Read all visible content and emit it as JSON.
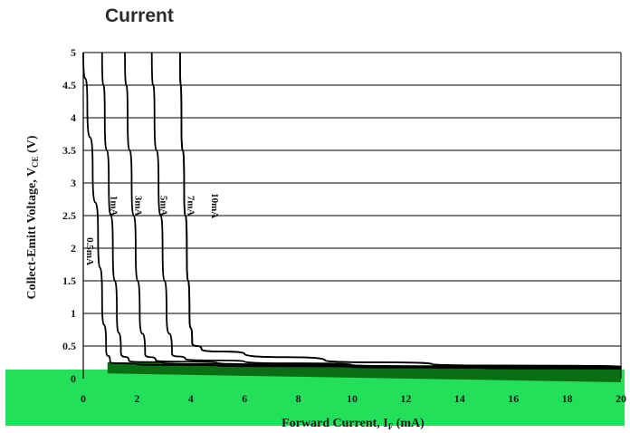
{
  "page": {
    "title": "Current"
  },
  "chart_data": {
    "type": "line",
    "title": "Current",
    "xlabel": "Forward Current, I",
    "xlabel_sub": "F",
    "xlabel_unit": " (mA)",
    "ylabel": "Collect-Emitt Voltage, V",
    "ylabel_sub": "CE",
    "ylabel_unit": " (V)",
    "xlim": [
      0,
      20
    ],
    "ylim": [
      0,
      5
    ],
    "xticks": [
      "0",
      "2",
      "4",
      "6",
      "8",
      "10",
      "12",
      "14",
      "16",
      "18",
      "20"
    ],
    "yticks": [
      "0",
      "0.5",
      "1",
      "1.5",
      "2",
      "2.5",
      "3",
      "3.5",
      "4",
      "4.5",
      "5"
    ],
    "grid": "horizontal",
    "colors": {
      "line": "#000000",
      "band": "#22e05a",
      "band_dark": "#0c6e14"
    },
    "series": [
      {
        "name": "0.5mA",
        "x": [
          0.0,
          0.15,
          0.35,
          0.55,
          0.7,
          0.85,
          1.0,
          2.0,
          5.0,
          10.0,
          15.0,
          20.0
        ],
        "y": [
          5.0,
          4.2,
          3.2,
          2.2,
          1.2,
          0.45,
          0.25,
          0.22,
          0.2,
          0.18,
          0.16,
          0.15
        ]
      },
      {
        "name": "1mA",
        "x": [
          0.7,
          0.8,
          0.95,
          1.1,
          1.25,
          1.4,
          1.7,
          3.0,
          6.0,
          12.0,
          20.0
        ],
        "y": [
          5.0,
          4.0,
          3.0,
          2.0,
          1.0,
          0.4,
          0.27,
          0.24,
          0.21,
          0.18,
          0.15
        ]
      },
      {
        "name": "3mA",
        "x": [
          1.55,
          1.65,
          1.8,
          1.95,
          2.1,
          2.3,
          2.7,
          5.0,
          10.0,
          20.0
        ],
        "y": [
          5.0,
          4.0,
          3.0,
          2.0,
          1.0,
          0.38,
          0.28,
          0.24,
          0.2,
          0.16
        ]
      },
      {
        "name": "5mA",
        "x": [
          2.55,
          2.65,
          2.8,
          2.95,
          3.1,
          3.3,
          3.8,
          6.0,
          10.0,
          20.0
        ],
        "y": [
          5.0,
          4.0,
          3.0,
          2.0,
          1.0,
          0.38,
          0.3,
          0.26,
          0.21,
          0.17
        ]
      },
      {
        "name": "7mA",
        "x": [
          3.6,
          3.65,
          3.75,
          3.85,
          3.95,
          4.05,
          4.4,
          6.0,
          9.0,
          13.0,
          20.0
        ],
        "y": [
          5.0,
          4.0,
          3.0,
          2.0,
          1.0,
          0.55,
          0.45,
          0.38,
          0.28,
          0.22,
          0.18
        ]
      },
      {
        "name": "10mA",
        "x": [
          3.6,
          3.65,
          3.75,
          3.85,
          3.95,
          4.05,
          4.4,
          6.0,
          9.0,
          13.0,
          20.0
        ],
        "y": [
          5.0,
          4.0,
          3.0,
          2.0,
          1.0,
          0.55,
          0.45,
          0.38,
          0.28,
          0.22,
          0.18
        ]
      }
    ],
    "label_positions_data": [
      {
        "name": "0.5mA",
        "x": 0.0,
        "y": 1.95
      },
      {
        "name": "1mA",
        "x": 0.9,
        "y": 2.65
      },
      {
        "name": "3mA",
        "x": 1.8,
        "y": 2.65
      },
      {
        "name": "5mA",
        "x": 2.75,
        "y": 2.65
      },
      {
        "name": "7mA",
        "x": 3.75,
        "y": 2.65
      },
      {
        "name": "10mA",
        "x": 4.65,
        "y": 2.65
      }
    ]
  }
}
